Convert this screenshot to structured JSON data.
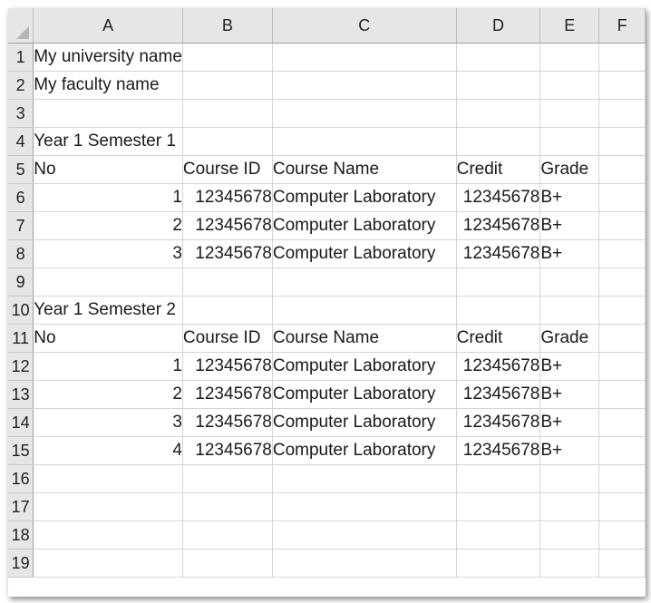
{
  "columns": [
    "A",
    "B",
    "C",
    "D",
    "E",
    "F"
  ],
  "rows": [
    {
      "n": "1",
      "A": "My university name",
      "B": "",
      "C": "",
      "D": "",
      "E": "",
      "F": ""
    },
    {
      "n": "2",
      "A": "My faculty name",
      "B": "",
      "C": "",
      "D": "",
      "E": "",
      "F": ""
    },
    {
      "n": "3",
      "A": "",
      "B": "",
      "C": "",
      "D": "",
      "E": "",
      "F": ""
    },
    {
      "n": "4",
      "A": "Year 1 Semester 1",
      "B": "",
      "C": "",
      "D": "",
      "E": "",
      "F": ""
    },
    {
      "n": "5",
      "A": "No",
      "B": "Course ID",
      "C": "Course Name",
      "D": "Credit",
      "E": "Grade",
      "F": ""
    },
    {
      "n": "6",
      "A": "1",
      "B": "12345678",
      "C": "Computer Laboratory",
      "D": "12345678",
      "E": "B+",
      "F": ""
    },
    {
      "n": "7",
      "A": "2",
      "B": "12345678",
      "C": "Computer Laboratory",
      "D": "12345678",
      "E": "B+",
      "F": ""
    },
    {
      "n": "8",
      "A": "3",
      "B": "12345678",
      "C": "Computer Laboratory",
      "D": "12345678",
      "E": "B+",
      "F": ""
    },
    {
      "n": "9",
      "A": "",
      "B": "",
      "C": "",
      "D": "",
      "E": "",
      "F": ""
    },
    {
      "n": "10",
      "A": "Year 1 Semester 2",
      "B": "",
      "C": "",
      "D": "",
      "E": "",
      "F": ""
    },
    {
      "n": "11",
      "A": "No",
      "B": "Course ID",
      "C": "Course Name",
      "D": "Credit",
      "E": "Grade",
      "F": ""
    },
    {
      "n": "12",
      "A": "1",
      "B": "12345678",
      "C": "Computer Laboratory",
      "D": "12345678",
      "E": "B+",
      "F": ""
    },
    {
      "n": "13",
      "A": "2",
      "B": "12345678",
      "C": "Computer Laboratory",
      "D": "12345678",
      "E": "B+",
      "F": ""
    },
    {
      "n": "14",
      "A": "3",
      "B": "12345678",
      "C": "Computer Laboratory",
      "D": "12345678",
      "E": "B+",
      "F": ""
    },
    {
      "n": "15",
      "A": "4",
      "B": "12345678",
      "C": "Computer Laboratory",
      "D": "12345678",
      "E": "B+",
      "F": ""
    },
    {
      "n": "16",
      "A": "",
      "B": "",
      "C": "",
      "D": "",
      "E": "",
      "F": ""
    },
    {
      "n": "17",
      "A": "",
      "B": "",
      "C": "",
      "D": "",
      "E": "",
      "F": ""
    },
    {
      "n": "18",
      "A": "",
      "B": "",
      "C": "",
      "D": "",
      "E": "",
      "F": ""
    },
    {
      "n": "19",
      "A": "",
      "B": "",
      "C": "",
      "D": "",
      "E": "",
      "F": ""
    }
  ]
}
